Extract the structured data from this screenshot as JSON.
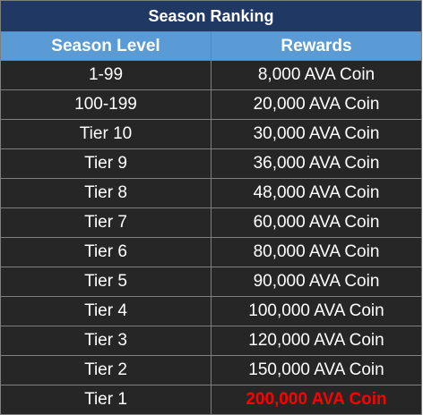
{
  "title": "Season Ranking",
  "columns": {
    "level": "Season Level",
    "rewards": "Rewards"
  },
  "rows": [
    {
      "level": "1-99",
      "reward": "8,000 AVA Coin"
    },
    {
      "level": "100-199",
      "reward": "20,000 AVA Coin"
    },
    {
      "level": "Tier 10",
      "reward": "30,000 AVA Coin"
    },
    {
      "level": "Tier 9",
      "reward": "36,000 AVA Coin"
    },
    {
      "level": "Tier 8",
      "reward": "48,000 AVA Coin"
    },
    {
      "level": "Tier 7",
      "reward": "60,000 AVA Coin"
    },
    {
      "level": "Tier 6",
      "reward": "80,000 AVA Coin"
    },
    {
      "level": "Tier 5",
      "reward": "90,000 AVA Coin"
    },
    {
      "level": "Tier 4",
      "reward": "100,000 AVA Coin"
    },
    {
      "level": "Tier 3",
      "reward": "120,000 AVA Coin"
    },
    {
      "level": "Tier 2",
      "reward": "150,000 AVA Coin"
    },
    {
      "level": "Tier 1",
      "reward": "200,000 AVA Coin"
    }
  ],
  "colors": {
    "title_bg": "#1f3864",
    "header_bg": "#5b9bd5",
    "body_bg": "#262626",
    "border": "#7f7f7f",
    "text": "#ffffff",
    "highlight_text": "#ff0000"
  }
}
